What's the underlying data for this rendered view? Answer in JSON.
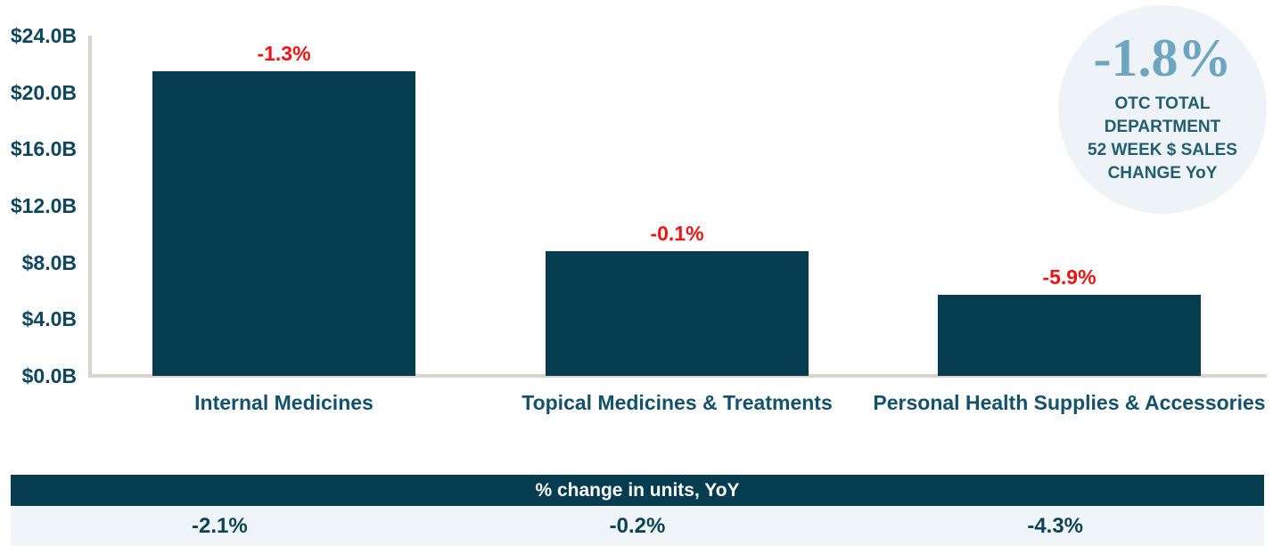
{
  "colors": {
    "bar": "#053C50",
    "negative_change_red": "#EC1414",
    "axis_line": "#D9D4CA",
    "category_label": "#14516B",
    "ytick_label": "#0E465E",
    "badge_bg": "#EDF3F6",
    "badge_value_blue": "#6EA6C2",
    "badge_caption": "#235D72",
    "table_header_bg": "#053C50",
    "table_header_text": "#FFFFFF",
    "table_row_bg": "#EFF5F8",
    "table_value_text": "#0D4356"
  },
  "badge": {
    "value": "-1.8%",
    "caption": "OTC TOTAL\nDEPARTMENT\n52 WEEK $ SALES\nCHANGE YoY"
  },
  "table": {
    "header": "% change in units, YoY",
    "values": [
      "-2.1%",
      "-0.2%",
      "-4.3%"
    ]
  },
  "chart_data": {
    "type": "bar",
    "categories": [
      "Internal Medicines",
      "Topical Medicines & Treatments",
      "Personal Health Supplies & Accessories"
    ],
    "values": [
      21.5,
      8.8,
      5.7
    ],
    "values_read_from_axis_unit": "$B",
    "bar_value_labels": [
      "-1.3%",
      "-0.1%",
      "-5.9%"
    ],
    "ytick_labels": [
      "$0.0B",
      "$4.0B",
      "$8.0B",
      "$12.0B",
      "$16.0B",
      "$20.0B",
      "$24.0B"
    ],
    "ylim": [
      0,
      24
    ],
    "grid": false,
    "title": "",
    "xlabel": "",
    "ylabel": "",
    "annotation_badge": {
      "value": "-1.8%",
      "text": "OTC TOTAL DEPARTMENT 52 WEEK $ SALES CHANGE YoY"
    },
    "units_change_row": {
      "header": "% change in units, YoY",
      "values": [
        "-2.1%",
        "-0.2%",
        "-4.3%"
      ]
    }
  }
}
